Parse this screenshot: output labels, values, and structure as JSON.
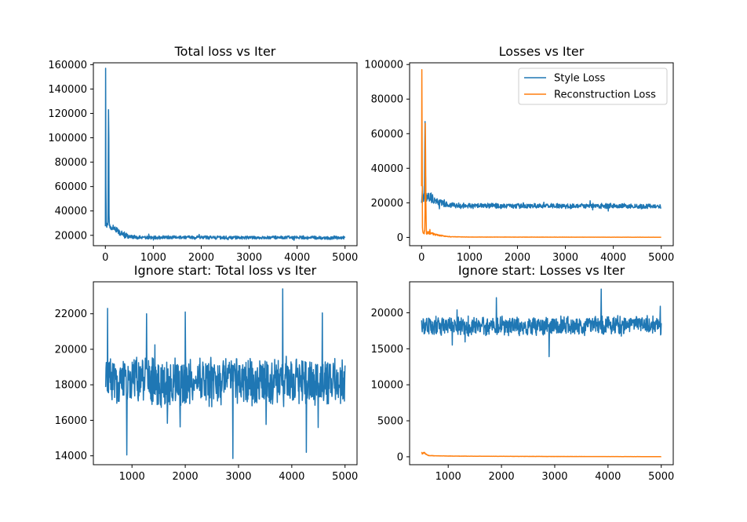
{
  "colors": {
    "blue": "#1f77b4",
    "orange": "#ff7f0e"
  },
  "legend_labels": [
    "Style Loss",
    "Reconstruction Loss"
  ],
  "chart_data": [
    {
      "type": "line",
      "title": "Total loss vs Iter",
      "xlim": [
        -250,
        5250
      ],
      "ylim": [
        11500,
        161500
      ],
      "xticks": [
        0,
        1000,
        2000,
        3000,
        4000,
        5000
      ],
      "yticks": [
        20000,
        40000,
        60000,
        80000,
        100000,
        120000,
        140000,
        160000
      ],
      "legend": "none",
      "series": [
        {
          "color": "blue",
          "kind": "noisy",
          "start": 0,
          "end": 5000,
          "x": [
            0,
            5,
            10,
            15,
            20,
            30,
            40,
            55,
            65,
            70,
            75,
            80,
            85,
            95,
            120,
            200,
            300,
            400,
            500,
            700,
            1000,
            2000,
            3000,
            4000,
            5000
          ],
          "y": [
            27000,
            157000,
            62000,
            40000,
            30000,
            28000,
            29000,
            31000,
            123000,
            100000,
            45000,
            30000,
            27000,
            28000,
            26000,
            25000,
            22000,
            20500,
            19000,
            18500,
            18300,
            18200,
            18100,
            18200,
            18000
          ],
          "spread": [
            2000,
            0,
            0,
            0,
            3000,
            3000,
            3000,
            3000,
            0,
            0,
            0,
            4000,
            4000,
            3500,
            3200,
            3000,
            2600,
            2300,
            2000,
            1800,
            1600,
            1600,
            1600,
            1600,
            1600
          ]
        }
      ]
    },
    {
      "type": "line",
      "title": "Losses vs Iter",
      "xlim": [
        -250,
        5250
      ],
      "ylim": [
        -4800,
        101000
      ],
      "xticks": [
        0,
        1000,
        2000,
        3000,
        4000,
        5000
      ],
      "yticks": [
        0,
        20000,
        40000,
        60000,
        80000,
        100000
      ],
      "legend": "top-right",
      "series": [
        {
          "name": "Style Loss",
          "color": "blue",
          "kind": "noisy",
          "start": 0,
          "end": 5000,
          "x": [
            0,
            20,
            40,
            60,
            70,
            80,
            90,
            100,
            150,
            200,
            300,
            400,
            600,
            1000,
            2000,
            3000,
            4000,
            5000
          ],
          "y": [
            22000,
            25000,
            22000,
            24000,
            67000,
            40000,
            25000,
            23000,
            24000,
            23000,
            21000,
            20000,
            18500,
            18300,
            18200,
            18100,
            18200,
            18000
          ],
          "spread": [
            3000,
            3000,
            3000,
            3000,
            0,
            0,
            3000,
            3000,
            3000,
            3000,
            2500,
            2200,
            1800,
            1600,
            1600,
            1600,
            1600,
            1600
          ]
        },
        {
          "name": "Reconstruction Loss",
          "color": "orange",
          "kind": "noisy",
          "start": 0,
          "end": 5000,
          "x": [
            0,
            5,
            10,
            15,
            20,
            30,
            50,
            70,
            80,
            90,
            100,
            150,
            200,
            300,
            400,
            500,
            600,
            1000,
            5000
          ],
          "y": [
            30000,
            97000,
            50000,
            10000,
            4000,
            3000,
            3500,
            3000,
            66000,
            20000,
            3000,
            2500,
            2500,
            1500,
            1000,
            700,
            400,
            200,
            100
          ],
          "spread": [
            500,
            0,
            0,
            1500,
            1500,
            1500,
            1500,
            1500,
            0,
            0,
            1500,
            1200,
            1000,
            700,
            500,
            300,
            150,
            50,
            30
          ]
        }
      ]
    },
    {
      "type": "line",
      "title": "Ignore start: Total loss vs Iter",
      "xlim": [
        275,
        5225
      ],
      "ylim": [
        13500,
        23800
      ],
      "xticks": [
        1000,
        2000,
        3000,
        4000,
        5000
      ],
      "yticks": [
        14000,
        16000,
        18000,
        20000,
        22000
      ],
      "legend": "none",
      "series": [
        {
          "color": "blue",
          "kind": "noisy",
          "start": 500,
          "end": 5000,
          "x": [
            500,
            5000
          ],
          "y": [
            18200,
            18200
          ],
          "spread": [
            1500,
            1500
          ],
          "spikes": [
            [
              540,
              22300
            ],
            [
              900,
              14050
            ],
            [
              1270,
              22000
            ],
            [
              2890,
              13850
            ],
            [
              3830,
              23400
            ],
            [
              4270,
              14200
            ],
            [
              4570,
              22050
            ],
            [
              2000,
              22100
            ]
          ]
        }
      ]
    },
    {
      "type": "line",
      "title": "Ignore start: Losses vs Iter",
      "xlim": [
        275,
        5225
      ],
      "ylim": [
        -1100,
        24300
      ],
      "xticks": [
        1000,
        2000,
        3000,
        4000,
        5000
      ],
      "yticks": [
        0,
        5000,
        10000,
        15000,
        20000
      ],
      "legend": "none",
      "series": [
        {
          "name": "Style Loss",
          "color": "blue",
          "kind": "noisy",
          "start": 500,
          "end": 5000,
          "x": [
            500,
            5000
          ],
          "y": [
            18200,
            18200
          ],
          "spread": [
            1500,
            1500
          ],
          "spikes": [
            [
              3870,
              23300
            ],
            [
              2890,
              13900
            ],
            [
              1900,
              22100
            ]
          ]
        },
        {
          "name": "Reconstruction Loss",
          "color": "orange",
          "kind": "noisy",
          "start": 500,
          "end": 5000,
          "x": [
            500,
            560,
            600,
            650,
            1000,
            2000,
            3000,
            5000
          ],
          "y": [
            450,
            500,
            250,
            150,
            100,
            60,
            40,
            20
          ],
          "spread": [
            150,
            150,
            60,
            30,
            15,
            10,
            8,
            5
          ]
        }
      ]
    }
  ]
}
